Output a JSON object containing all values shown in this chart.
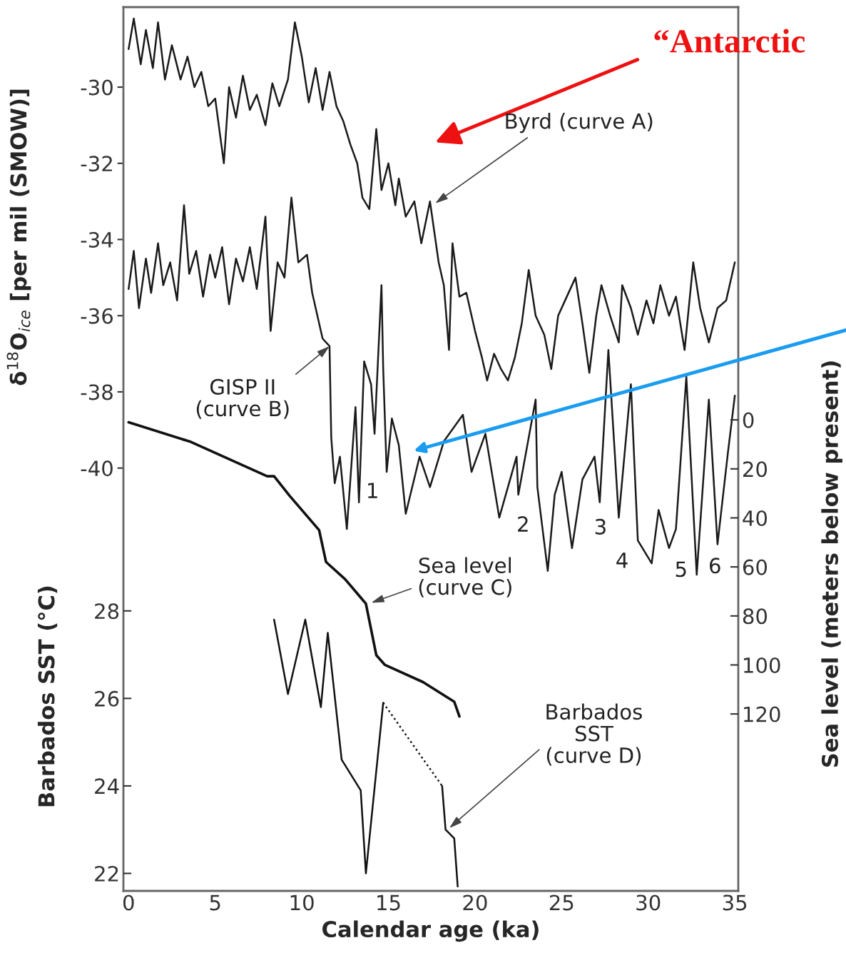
{
  "chart_data": {
    "type": "line",
    "xlabel": "Calendar age (ka)",
    "ylabel": "δ$^{18}$O$_{ice}$ [per mil (SMOW)]",
    "y2label": "Sea level (meters below present)",
    "y3label": "Barbados SST (°C)",
    "xlim": [
      -0.3,
      35.2
    ],
    "xticks": [
      0,
      5,
      10,
      15,
      20,
      25,
      30,
      35
    ],
    "ylim": [
      -51.1,
      -27.9
    ],
    "yticks": [
      -30,
      -32,
      -34,
      -36,
      -38,
      -40
    ],
    "y2lim": [
      192.2,
      -168.4
    ],
    "y2ticks": [
      0,
      20,
      40,
      60,
      80,
      100,
      120
    ],
    "y3lim": [
      21.6,
      41.8
    ],
    "y3ticks": [
      22,
      24,
      26,
      28
    ],
    "grid": false,
    "series": [
      {
        "color": "#1a1a1a",
        "axis": "y",
        "x": [
          0,
          0.3,
          0.7,
          1.0,
          1.4,
          1.7,
          2.1,
          2.5,
          3.0,
          3.4,
          3.8,
          4.2,
          4.6,
          5.0,
          5.5,
          5.8,
          6.2,
          6.6,
          7.0,
          7.4,
          7.9,
          8.3,
          8.7,
          9.2,
          9.6,
          10.0,
          10.4,
          10.8,
          11.2,
          11.6,
          12.0,
          12.4,
          12.8,
          13.2,
          13.5,
          13.9,
          14.3,
          14.6,
          15.0,
          15.4,
          15.6,
          16.0,
          16.5,
          16.9,
          17.4,
          17.9,
          18.2,
          18.5,
          18.7,
          19.1,
          19.5,
          20.0,
          20.4,
          20.7,
          21.1,
          21.5,
          21.9,
          22.3,
          22.7,
          23.1,
          23.5,
          24.0,
          24.4,
          24.8,
          25.2,
          25.8,
          26.2,
          26.6,
          27.0,
          27.3,
          27.8,
          28.3,
          28.5,
          29.0,
          29.4,
          29.9,
          30.3,
          30.7,
          31.2,
          31.6,
          32.1,
          32.6,
          33.0,
          33.5,
          34.0,
          34.5,
          35.0
        ],
        "values": [
          -29.0,
          -28.2,
          -29.4,
          -28.5,
          -29.5,
          -28.3,
          -29.8,
          -28.9,
          -29.8,
          -29.2,
          -30.0,
          -29.6,
          -30.5,
          -30.3,
          -32.0,
          -30.0,
          -30.8,
          -29.7,
          -30.6,
          -30.2,
          -31.0,
          -29.9,
          -30.5,
          -29.8,
          -28.3,
          -29.2,
          -30.4,
          -29.5,
          -30.6,
          -29.6,
          -30.5,
          -30.9,
          -31.5,
          -32.0,
          -32.9,
          -33.2,
          -31.1,
          -32.7,
          -32.0,
          -33.1,
          -32.4,
          -33.4,
          -33.0,
          -34.1,
          -33.0,
          -34.6,
          -35.2,
          -36.9,
          -34.1,
          -35.5,
          -35.4,
          -36.4,
          -37.1,
          -37.7,
          -37.0,
          -37.4,
          -37.7,
          -37.1,
          -36.2,
          -34.8,
          -36.0,
          -36.5,
          -37.4,
          -36.0,
          -35.6,
          -35.0,
          -36.2,
          -37.5,
          -36.0,
          -35.2,
          -36.0,
          -36.7,
          -35.2,
          -35.8,
          -36.5,
          -35.6,
          -36.2,
          -35.2,
          -36.0,
          -35.5,
          -36.9,
          -34.6,
          -35.8,
          -36.7,
          -35.8,
          -35.6,
          -34.6
        ]
      },
      {
        "color": "#1a1a1a",
        "axis": "y",
        "x": [
          0,
          0.3,
          0.6,
          1.0,
          1.3,
          1.7,
          2.0,
          2.4,
          2.8,
          3.2,
          3.5,
          3.9,
          4.3,
          4.7,
          5.0,
          5.4,
          5.8,
          6.2,
          6.6,
          7.0,
          7.4,
          7.9,
          8.2,
          8.6,
          9.0,
          9.4,
          9.8,
          10.3,
          10.6,
          11.2,
          11.6,
          11.7,
          11.9,
          12.2,
          12.6,
          13.1,
          13.3,
          13.6,
          14.0,
          14.2,
          14.6,
          14.7,
          14.9,
          15.2,
          15.6,
          16.0,
          16.8,
          17.4,
          18.2,
          19.3,
          19.8,
          20.6,
          21.4,
          22.4,
          22.5,
          23.5,
          23.6,
          24.2,
          24.6,
          25.0,
          25.6,
          26.2,
          26.9,
          27.2,
          27.7,
          28.3,
          29.0,
          29.4,
          30.2,
          30.6,
          31.2,
          31.6,
          32.2,
          32.8,
          33.5,
          34.0,
          34.6,
          35.0
        ],
        "values": [
          -35.3,
          -34.3,
          -35.8,
          -34.5,
          -35.4,
          -34.1,
          -35.2,
          -34.6,
          -35.6,
          -33.1,
          -34.9,
          -34.3,
          -35.5,
          -34.4,
          -35.0,
          -34.2,
          -35.7,
          -34.5,
          -35.1,
          -34.2,
          -35.3,
          -33.4,
          -36.4,
          -34.6,
          -35.0,
          -32.9,
          -34.6,
          -34.4,
          -35.4,
          -36.6,
          -36.8,
          -39.2,
          -40.4,
          -39.7,
          -41.6,
          -38.4,
          -40.9,
          -37.2,
          -37.8,
          -39.1,
          -35.2,
          -37.4,
          -40.1,
          -38.7,
          -39.4,
          -41.2,
          -39.7,
          -40.5,
          -39.3,
          -38.6,
          -40.1,
          -39.1,
          -41.3,
          -39.7,
          -40.7,
          -38.2,
          -40.5,
          -42.7,
          -40.7,
          -40.1,
          -42.1,
          -40.3,
          -39.7,
          -40.9,
          -36.9,
          -41.3,
          -37.8,
          -41.9,
          -42.5,
          -41.1,
          -42.1,
          -41.6,
          -37.6,
          -42.8,
          -38.2,
          -42.0,
          -39.6,
          -38.1
        ]
      },
      {
        "color": "#111111",
        "axis": "y2",
        "x": [
          0,
          3.6,
          8.0,
          8.4,
          9.3,
          11.0,
          11.4,
          12.5,
          13.7,
          14.3,
          14.8,
          17.0,
          18.8,
          19.1
        ],
        "values": [
          1,
          9,
          23,
          23,
          31,
          45,
          58,
          65,
          75,
          96,
          100,
          107,
          115,
          121
        ]
      },
      {
        "color": "#111111",
        "axis": "y3",
        "x": [
          8.4,
          9.2,
          10.2,
          11.1,
          11.5,
          12.3,
          13.4,
          13.7,
          14.7
        ],
        "values": [
          27.8,
          26.1,
          27.8,
          25.8,
          27.5,
          24.6,
          23.9,
          22.0,
          25.9
        ]
      },
      {
        "color": "#111111",
        "axis": "y3",
        "line_style": "dotted",
        "x": [
          14.7,
          18.1
        ],
        "values": [
          25.9,
          24.0
        ]
      },
      {
        "color": "#111111",
        "axis": "y3",
        "x": [
          18.1,
          18.3,
          18.8,
          19.0
        ],
        "values": [
          24.0,
          23.0,
          22.8,
          21.7
        ]
      }
    ],
    "annotations": [
      "“Antarctic",
      "Byrd (curve A)",
      {
        "text": "GISP II\n(curve B)",
        "x": 11.6,
        "y": -36.8
      },
      "Sea level\n(curve C)",
      "Barbados\nSST\n(curve D)",
      "1",
      "2",
      "3",
      "4",
      "5",
      "6"
    ]
  }
}
